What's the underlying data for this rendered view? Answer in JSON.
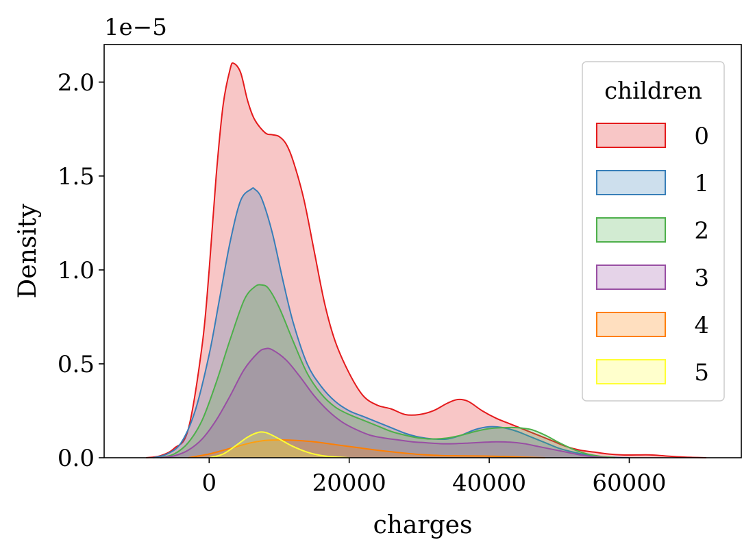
{
  "chart_data": {
    "type": "area",
    "xlabel": "charges",
    "ylabel": "Density",
    "offset_text": "1e−5",
    "xlim": [
      -15000,
      76000
    ],
    "ylim": [
      0,
      2.2
    ],
    "x_ticks": [
      0,
      20000,
      40000,
      60000
    ],
    "x_tick_labels": [
      "0",
      "20000",
      "40000",
      "60000"
    ],
    "y_ticks": [
      0,
      0.5,
      1.0,
      1.5,
      2.0
    ],
    "y_tick_labels": [
      "0.0",
      "0.5",
      "1.0",
      "1.5",
      "2.0"
    ],
    "grid": false,
    "legend": {
      "title": "children",
      "placement": "top-right",
      "entries": [
        "0",
        "1",
        "2",
        "3",
        "4",
        "5"
      ]
    },
    "fill_opacity": 0.25,
    "series": [
      {
        "name": "0",
        "color": "#e41a1c",
        "x": [
          -9000,
          -7000,
          -5000,
          -3000,
          -1000,
          0,
          1000,
          2000,
          3000,
          3500,
          4500,
          5500,
          6500,
          8000,
          9000,
          10000,
          11000,
          12000,
          13500,
          15000,
          16500,
          18000,
          20000,
          22000,
          24000,
          26000,
          28000,
          30000,
          32000,
          34000,
          35500,
          37000,
          39000,
          41000,
          43000,
          45000,
          47000,
          49000,
          51000,
          53000,
          55000,
          57000,
          59000,
          61000,
          63000,
          65000,
          67000,
          69000,
          71000
        ],
        "y": [
          0.0,
          0.01,
          0.05,
          0.15,
          0.6,
          1.0,
          1.5,
          1.88,
          2.07,
          2.1,
          2.05,
          1.9,
          1.8,
          1.73,
          1.72,
          1.71,
          1.67,
          1.58,
          1.38,
          1.1,
          0.82,
          0.62,
          0.45,
          0.33,
          0.28,
          0.26,
          0.23,
          0.23,
          0.25,
          0.29,
          0.31,
          0.3,
          0.25,
          0.21,
          0.18,
          0.15,
          0.12,
          0.09,
          0.06,
          0.04,
          0.03,
          0.02,
          0.015,
          0.015,
          0.015,
          0.01,
          0.005,
          0.002,
          0.0
        ]
      },
      {
        "name": "1",
        "color": "#377eb8",
        "x": [
          -8000,
          -6000,
          -4000,
          -2000,
          0,
          1500,
          3000,
          4500,
          6000,
          6500,
          7500,
          9000,
          10500,
          12000,
          14000,
          16000,
          18000,
          20000,
          22000,
          24000,
          26000,
          28000,
          30000,
          32000,
          34000,
          36000,
          38000,
          40000,
          42000,
          44000,
          46000,
          48000,
          50000,
          52000,
          54000,
          56000,
          58000,
          60000
        ],
        "y": [
          0.0,
          0.02,
          0.08,
          0.25,
          0.55,
          0.85,
          1.15,
          1.37,
          1.43,
          1.43,
          1.38,
          1.2,
          0.95,
          0.72,
          0.5,
          0.38,
          0.3,
          0.25,
          0.22,
          0.19,
          0.16,
          0.13,
          0.11,
          0.1,
          0.1,
          0.12,
          0.15,
          0.165,
          0.16,
          0.14,
          0.11,
          0.08,
          0.05,
          0.03,
          0.015,
          0.006,
          0.002,
          0.0
        ]
      },
      {
        "name": "2",
        "color": "#4daf4a",
        "x": [
          -7000,
          -5000,
          -3000,
          -1000,
          1000,
          3000,
          5000,
          6500,
          7500,
          8500,
          10000,
          12000,
          14000,
          16000,
          18000,
          20000,
          22000,
          24000,
          26000,
          28000,
          30000,
          32000,
          34000,
          36000,
          38000,
          40000,
          42000,
          44000,
          46000,
          48000,
          50000,
          52000,
          54000,
          56000,
          58000
        ],
        "y": [
          0.0,
          0.02,
          0.08,
          0.2,
          0.4,
          0.63,
          0.84,
          0.91,
          0.92,
          0.9,
          0.8,
          0.62,
          0.45,
          0.34,
          0.27,
          0.23,
          0.2,
          0.17,
          0.14,
          0.12,
          0.105,
          0.1,
          0.105,
          0.12,
          0.14,
          0.155,
          0.16,
          0.16,
          0.15,
          0.12,
          0.08,
          0.045,
          0.02,
          0.007,
          0.0
        ]
      },
      {
        "name": "3",
        "color": "#984ea3",
        "x": [
          -7000,
          -5000,
          -3000,
          -1000,
          1000,
          3000,
          5000,
          7000,
          8000,
          9000,
          11000,
          13000,
          15000,
          17000,
          19000,
          21000,
          23000,
          25000,
          27000,
          29000,
          31000,
          33000,
          35000,
          37000,
          39000,
          41000,
          43000,
          45000,
          47000,
          49000,
          51000,
          53000,
          55000,
          57000
        ],
        "y": [
          0.0,
          0.01,
          0.04,
          0.1,
          0.2,
          0.33,
          0.47,
          0.56,
          0.58,
          0.575,
          0.52,
          0.43,
          0.33,
          0.25,
          0.19,
          0.15,
          0.12,
          0.105,
          0.095,
          0.085,
          0.08,
          0.075,
          0.075,
          0.078,
          0.082,
          0.085,
          0.083,
          0.075,
          0.06,
          0.045,
          0.03,
          0.015,
          0.005,
          0.0
        ]
      },
      {
        "name": "4",
        "color": "#ff7f00",
        "x": [
          -3000,
          0,
          3000,
          6000,
          8000,
          10000,
          12000,
          15000,
          18000,
          21000,
          24000,
          27000,
          30000,
          33000,
          36000,
          39000,
          42000,
          45000,
          48000
        ],
        "y": [
          0.0,
          0.02,
          0.05,
          0.08,
          0.092,
          0.095,
          0.093,
          0.085,
          0.07,
          0.055,
          0.04,
          0.028,
          0.018,
          0.012,
          0.01,
          0.009,
          0.007,
          0.003,
          0.0
        ]
      },
      {
        "name": "5",
        "color": "#ffff33",
        "x": [
          0,
          2000,
          4000,
          5500,
          7000,
          8000,
          9000,
          10500,
          12000,
          14000,
          16000,
          18000,
          20000
        ],
        "y": [
          0.0,
          0.02,
          0.07,
          0.11,
          0.135,
          0.135,
          0.12,
          0.09,
          0.06,
          0.03,
          0.012,
          0.004,
          0.0
        ]
      }
    ]
  }
}
